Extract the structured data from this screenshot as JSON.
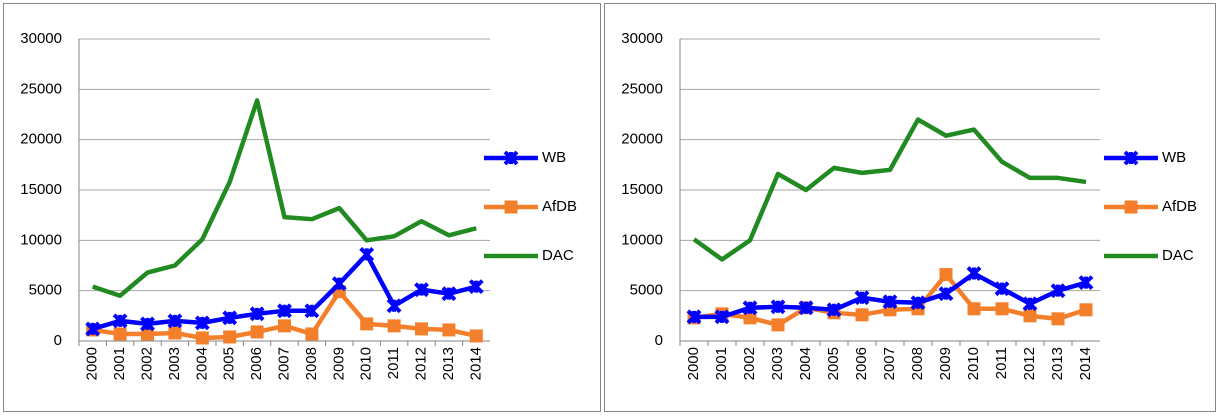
{
  "chart_data": [
    {
      "type": "line",
      "categories": [
        "2000",
        "2001",
        "2002",
        "2003",
        "2004",
        "2005",
        "2006",
        "2007",
        "2008",
        "2009",
        "2010",
        "2011",
        "2012",
        "2013",
        "2014"
      ],
      "series": [
        {
          "name": "WB",
          "color": "#0000ff",
          "marker": "x",
          "values": [
            1200,
            2000,
            1700,
            2000,
            1800,
            2300,
            2700,
            3000,
            3000,
            5700,
            8600,
            3500,
            5100,
            4700,
            5400
          ]
        },
        {
          "name": "AfDB",
          "color": "#f47f2a",
          "marker": "square",
          "values": [
            1100,
            700,
            700,
            800,
            300,
            400,
            900,
            1500,
            700,
            4900,
            1700,
            1500,
            1200,
            1100,
            500
          ]
        },
        {
          "name": "DAC",
          "color": "#218a21",
          "values": [
            5400,
            4500,
            6800,
            7500,
            10100,
            15800,
            23900,
            12300,
            12100,
            13200,
            10000,
            10400,
            11900,
            10500,
            11200
          ]
        }
      ],
      "ylim": [
        0,
        30000
      ],
      "yticks": [
        0,
        5000,
        10000,
        15000,
        20000,
        25000,
        30000
      ],
      "grid": true,
      "legend": "right"
    },
    {
      "type": "line",
      "categories": [
        "2000",
        "2001",
        "2002",
        "2003",
        "2004",
        "2005",
        "2006",
        "2007",
        "2008",
        "2009",
        "2010",
        "2011",
        "2012",
        "2013",
        "2014"
      ],
      "series": [
        {
          "name": "WB",
          "color": "#0000ff",
          "marker": "x",
          "values": [
            2400,
            2400,
            3300,
            3400,
            3300,
            3100,
            4300,
            3900,
            3800,
            4700,
            6700,
            5200,
            3700,
            5000,
            5800
          ]
        },
        {
          "name": "AfDB",
          "color": "#f47f2a",
          "marker": "square",
          "values": [
            2300,
            2700,
            2300,
            1600,
            3300,
            2800,
            2600,
            3100,
            3200,
            6600,
            3200,
            3200,
            2500,
            2200,
            3100
          ]
        },
        {
          "name": "DAC",
          "color": "#218a21",
          "values": [
            10100,
            8100,
            10000,
            16600,
            15000,
            17200,
            16700,
            17000,
            22000,
            20400,
            21000,
            17800,
            16200,
            16200,
            15800
          ]
        }
      ],
      "ylim": [
        0,
        30000
      ],
      "yticks": [
        0,
        5000,
        10000,
        15000,
        20000,
        25000,
        30000
      ],
      "grid": true,
      "legend": "right"
    }
  ]
}
